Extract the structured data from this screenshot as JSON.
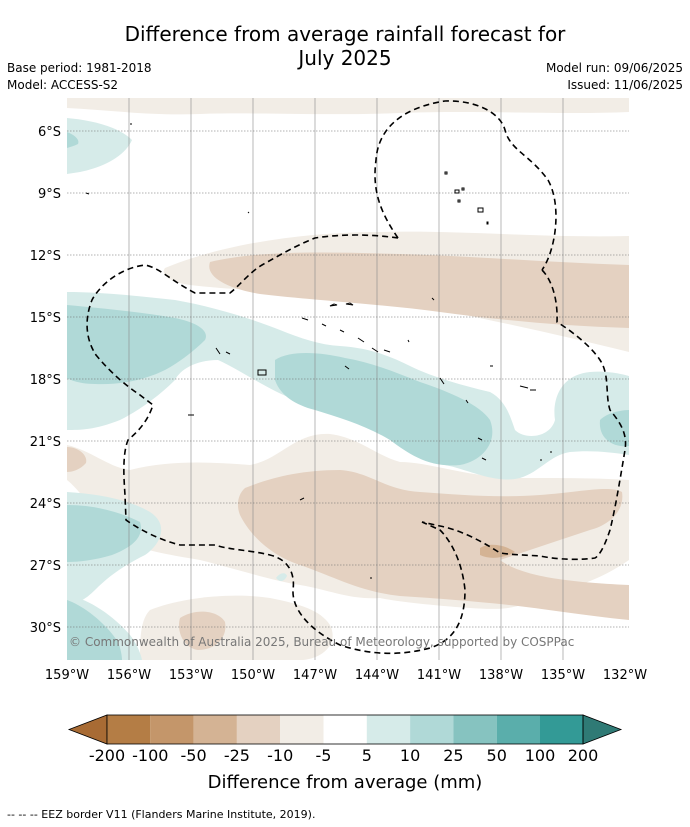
{
  "title_line1": "Difference from average rainfall forecast for",
  "title_line2": "July 2025",
  "base_period": "Base period: 1981-2018",
  "model": "Model: ACCESS-S2",
  "model_run": "Model run: 09/06/2025",
  "issued": "Issued: 11/06/2025",
  "copyright": "© Commonwealth of Australia 2025, Bureau of Meteorology, supported by COSPPac",
  "lat_labels": [
    "6°S",
    "9°S",
    "12°S",
    "15°S",
    "18°S",
    "21°S",
    "24°S",
    "27°S",
    "30°S"
  ],
  "lon_labels": [
    "159°W",
    "156°W",
    "153°W",
    "150°W",
    "147°W",
    "144°W",
    "141°W",
    "138°W",
    "135°W",
    "132°W"
  ],
  "colorbar": {
    "title": "Difference from average (mm)",
    "ticks": [
      "-200",
      "-100",
      "-50",
      "-25",
      "-10",
      "-5",
      "5",
      "10",
      "25",
      "50",
      "100",
      "200"
    ],
    "colors": [
      "#a86b34",
      "#b47d45",
      "#c4966a",
      "#d4b394",
      "#e4d1c1",
      "#f2ede6",
      "#ffffff",
      "#d6ebe9",
      "#b0d9d7",
      "#86c3c0",
      "#5aaeab",
      "#339a96",
      "#2f7a75"
    ]
  },
  "footer": "--  --  -- EEZ border V11 (Flanders Marine Institute, 2019)."
}
